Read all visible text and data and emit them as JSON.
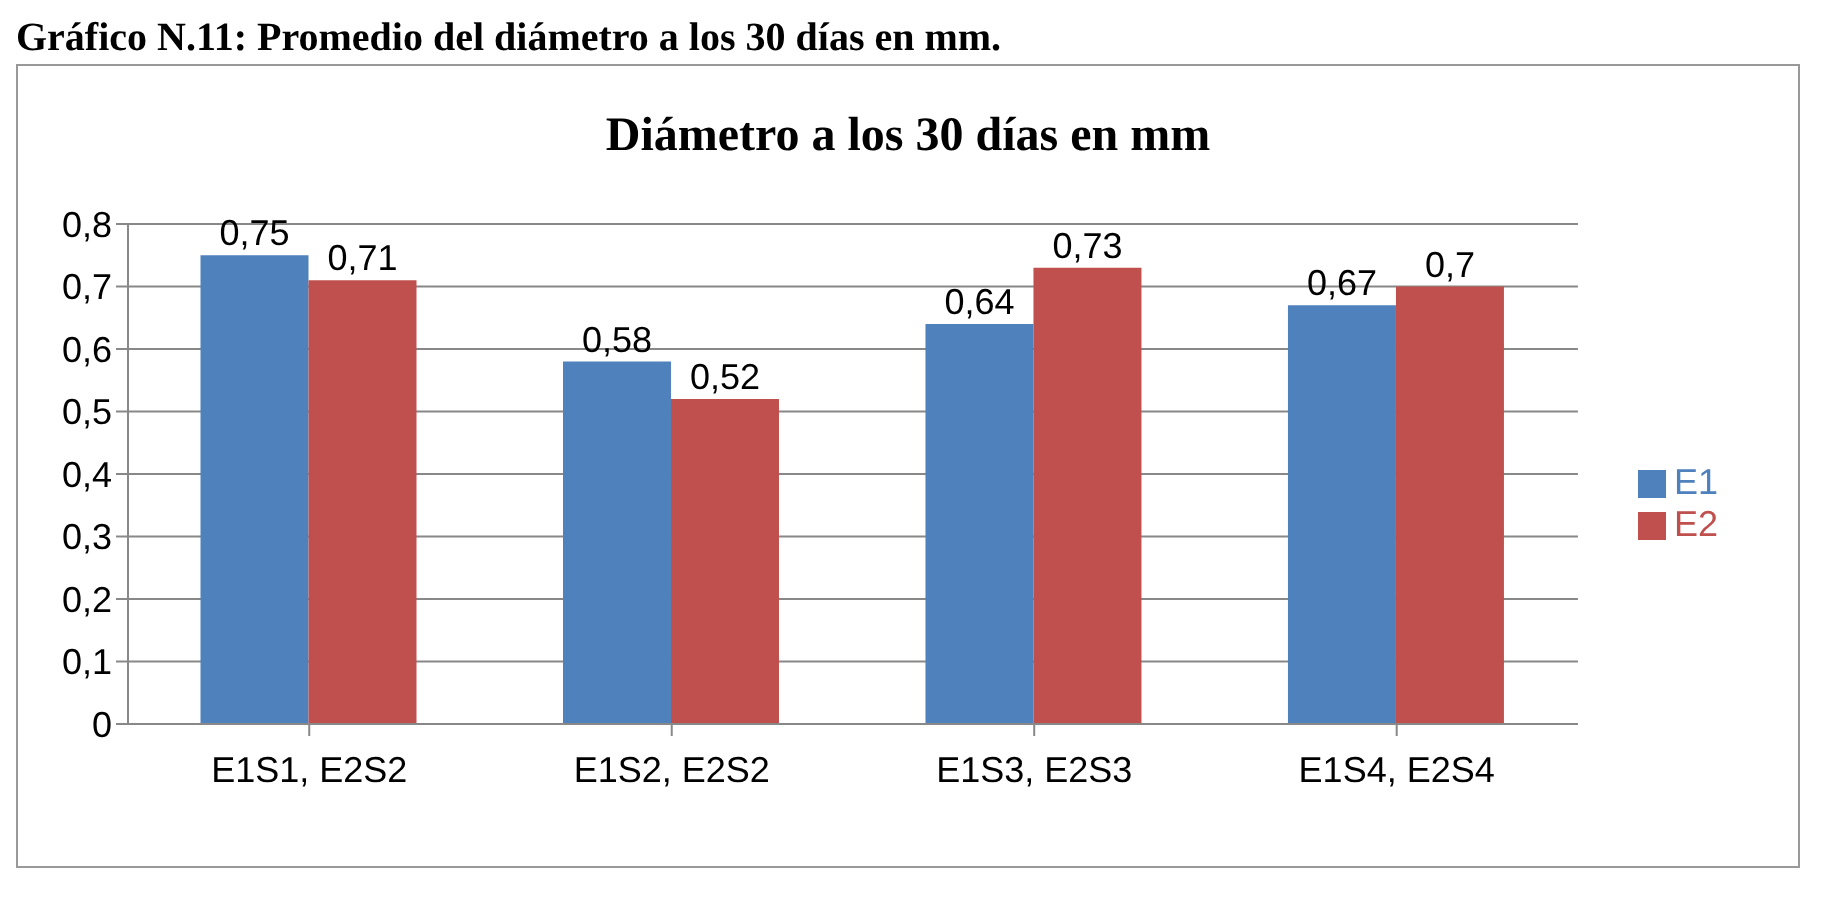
{
  "chart_data": {
    "type": "bar",
    "title": "Diámetro a los 30 días en mm",
    "annotations": [
      "Gráfico N.11: Promedio del diámetro a los 30 días en mm."
    ],
    "categories": [
      "E1S1, E2S2",
      "E1S2, E2S2",
      "E1S3, E2S3",
      "E1S4, E2S4"
    ],
    "series": [
      {
        "name": "E1",
        "color": "#4f81bd",
        "values": [
          0.75,
          0.58,
          0.64,
          0.67
        ],
        "value_labels": [
          "0,75",
          "0,58",
          "0,64",
          "0,67"
        ]
      },
      {
        "name": "E2",
        "color": "#c0504d",
        "values": [
          0.71,
          0.52,
          0.73,
          0.7
        ],
        "value_labels": [
          "0,71",
          "0,52",
          "0,73",
          "0,7"
        ]
      }
    ],
    "ylim": [
      0,
      0.8
    ],
    "yticks": [
      0,
      {
        "value": 0.1,
        "label": "0,1"
      },
      {
        "value": 0.2,
        "label": "0,2"
      },
      {
        "value": 0.3,
        "label": "0,3"
      },
      {
        "value": 0.4,
        "label": "0,4"
      },
      {
        "value": 0.5,
        "label": "0,5"
      },
      {
        "value": 0.6,
        "label": "0,6"
      },
      {
        "value": 0.7,
        "label": "0,7"
      },
      {
        "value": 0.8,
        "label": "0,8"
      }
    ],
    "grid": "y",
    "legend": "right"
  }
}
